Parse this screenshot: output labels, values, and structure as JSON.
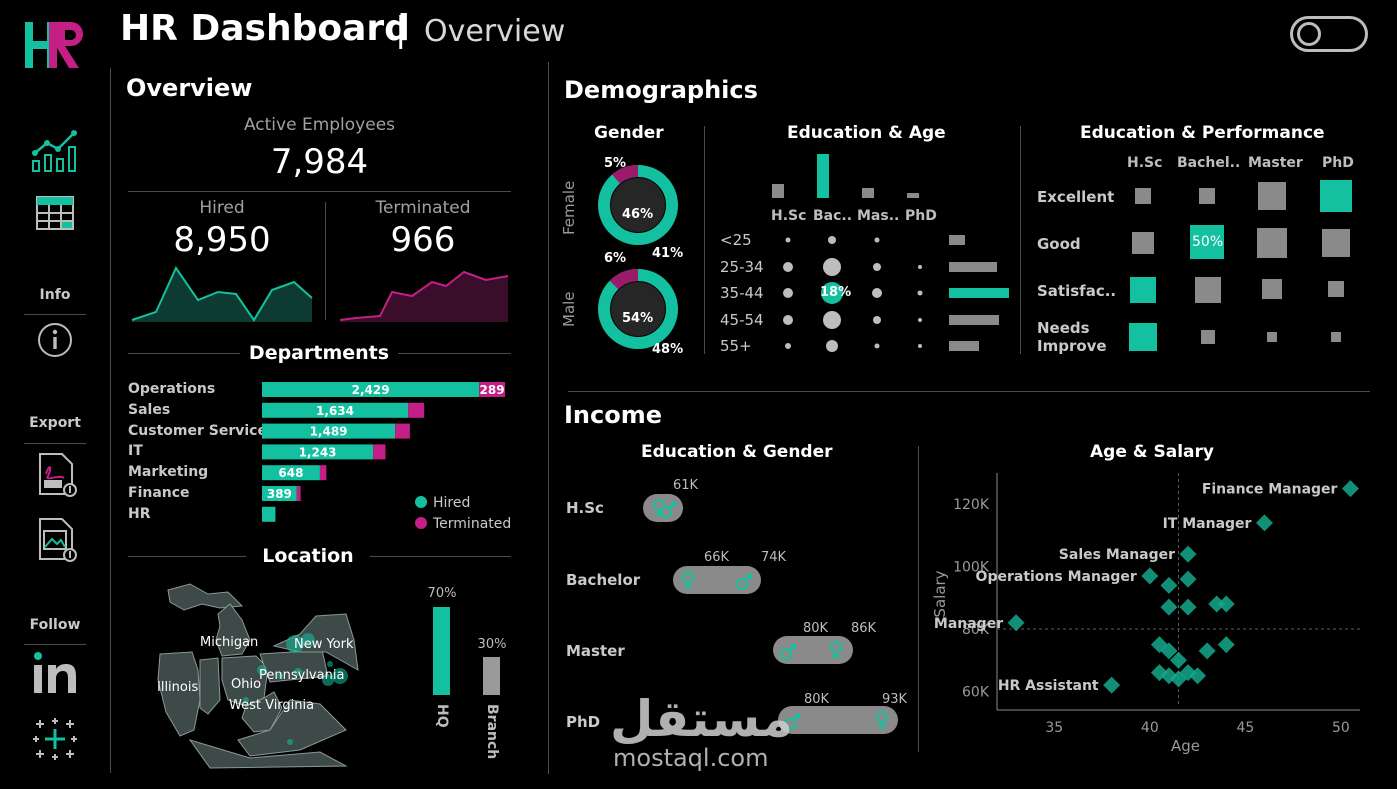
{
  "header": {
    "title": "HR Dashboard",
    "separator": "|",
    "subtitle": "Overview"
  },
  "sidebar": {
    "info_label": "Info",
    "export_label": "Export",
    "follow_label": "Follow"
  },
  "overview": {
    "title": "Overview",
    "active_label": "Active Employees",
    "active_value": "7,984",
    "hired_label": "Hired",
    "hired_value": "8,950",
    "terminated_label": "Terminated",
    "terminated_value": "966"
  },
  "departments": {
    "title": "Departments",
    "rows": [
      {
        "name": "Operations",
        "hired": 2429,
        "hired_label": "2,429",
        "terminated": 289,
        "terminated_label": "289"
      },
      {
        "name": "Sales",
        "hired": 1634,
        "hired_label": "1,634",
        "terminated": 180,
        "terminated_label": ""
      },
      {
        "name": "Customer Service",
        "hired": 1489,
        "hired_label": "1,489",
        "terminated": 165,
        "terminated_label": ""
      },
      {
        "name": "IT",
        "hired": 1243,
        "hired_label": "1,243",
        "terminated": 138,
        "terminated_label": ""
      },
      {
        "name": "Marketing",
        "hired": 648,
        "hired_label": "648",
        "terminated": 72,
        "terminated_label": ""
      },
      {
        "name": "Finance",
        "hired": 389,
        "hired_label": "389",
        "terminated": 43,
        "terminated_label": ""
      },
      {
        "name": "HR",
        "hired": 150,
        "hired_label": "",
        "terminated": 0,
        "terminated_label": ""
      }
    ],
    "legend_hired": "Hired",
    "legend_terminated": "Terminated"
  },
  "location": {
    "title": "Location",
    "states": [
      "Michigan",
      "New York",
      "Illinois",
      "Ohio",
      "Pennsylvania",
      "West Virginia"
    ],
    "hq_pct": "70%",
    "hq_label": "HQ",
    "hq_value": 70,
    "branch_pct": "30%",
    "branch_label": "Branch",
    "branch_value": 30
  },
  "demographics": {
    "title": "Demographics",
    "gender_title": "Gender",
    "female_label": "Female",
    "male_label": "Male",
    "female_outer": "5%",
    "female_inner": "46%",
    "female_right": "41%",
    "male_outer": "6%",
    "male_inner": "54%",
    "male_right": "48%",
    "edu_age_title": "Education & Age",
    "edu_cols": [
      "H.Sc",
      "Bac..",
      "Mas..",
      "PhD"
    ],
    "age_rows": [
      "<25",
      "25-34",
      "35-44",
      "45-54",
      "55+"
    ],
    "highlight_label": "18%",
    "edu_perf_title": "Education & Performance",
    "perf_cols": [
      "H.Sc",
      "Bachel..",
      "Master",
      "PhD"
    ],
    "perf_rows": [
      "Excellent",
      "Good",
      "Satisfac..",
      "Needs Improve"
    ],
    "perf_highlight": "50%"
  },
  "income": {
    "title": "Income",
    "edu_gender_title": "Education & Gender",
    "rows": [
      {
        "label": "H.Sc",
        "v1": "",
        "v2": "61K"
      },
      {
        "label": "Bachelor",
        "v1": "66K",
        "v2": "74K"
      },
      {
        "label": "Master",
        "v1": "80K",
        "v2": "86K"
      },
      {
        "label": "PhD",
        "v1": "80K",
        "v2": "93K"
      }
    ],
    "age_salary_title": "Age & Salary",
    "y_axis_label": "Salary",
    "x_axis_label": "Age",
    "y_ticks": [
      "120K",
      "100K",
      "80K",
      "60K"
    ],
    "x_ticks": [
      "35",
      "40",
      "45",
      "50"
    ],
    "annotations": [
      "Finance Manager",
      "IT Manager",
      "Sales Manager",
      "Operations Manager",
      "HR Manager",
      "HR Assistant"
    ]
  },
  "watermark": {
    "arabic": "مستقل",
    "latin": "mostaql.com"
  },
  "colors": {
    "accent": "#13c0a0",
    "pink": "#c41f86",
    "grey": "#8a8a8a"
  },
  "chart_data": [
    {
      "type": "bar",
      "title": "Departments",
      "categories": [
        "Operations",
        "Sales",
        "Customer Service",
        "IT",
        "Marketing",
        "Finance",
        "HR"
      ],
      "series": [
        {
          "name": "Hired",
          "values": [
            2429,
            1634,
            1489,
            1243,
            648,
            389,
            150
          ]
        },
        {
          "name": "Terminated",
          "values": [
            289,
            180,
            165,
            138,
            72,
            43,
            0
          ]
        }
      ]
    },
    {
      "type": "bar",
      "categories": [
        "HQ",
        "Branch"
      ],
      "values": [
        70,
        30
      ]
    },
    {
      "type": "scatter",
      "title": "Age & Salary",
      "xlabel": "Age",
      "ylabel": "Salary",
      "xlim": [
        32,
        51
      ],
      "ylim": [
        55000,
        130000
      ],
      "points": [
        {
          "x": 50.5,
          "y": 125000,
          "label": "Finance Manager"
        },
        {
          "x": 46.0,
          "y": 114000,
          "label": "IT Manager"
        },
        {
          "x": 42.0,
          "y": 104000,
          "label": "Sales Manager"
        },
        {
          "x": 40.0,
          "y": 97000,
          "label": "Operations Manager"
        },
        {
          "x": 41.0,
          "y": 94000
        },
        {
          "x": 42.0,
          "y": 96000
        },
        {
          "x": 33.0,
          "y": 82000,
          "label": "HR Manager"
        },
        {
          "x": 41.0,
          "y": 87000
        },
        {
          "x": 42.0,
          "y": 87000
        },
        {
          "x": 43.5,
          "y": 88000
        },
        {
          "x": 44.0,
          "y": 88000
        },
        {
          "x": 40.5,
          "y": 75000
        },
        {
          "x": 41.0,
          "y": 73000
        },
        {
          "x": 41.5,
          "y": 70000
        },
        {
          "x": 40.5,
          "y": 66000
        },
        {
          "x": 41.0,
          "y": 65000
        },
        {
          "x": 41.5,
          "y": 64000
        },
        {
          "x": 42.0,
          "y": 66000
        },
        {
          "x": 42.5,
          "y": 65000
        },
        {
          "x": 43.0,
          "y": 73000
        },
        {
          "x": 44.0,
          "y": 75000
        },
        {
          "x": 38.0,
          "y": 62000,
          "label": "HR Assistant"
        }
      ]
    }
  ]
}
